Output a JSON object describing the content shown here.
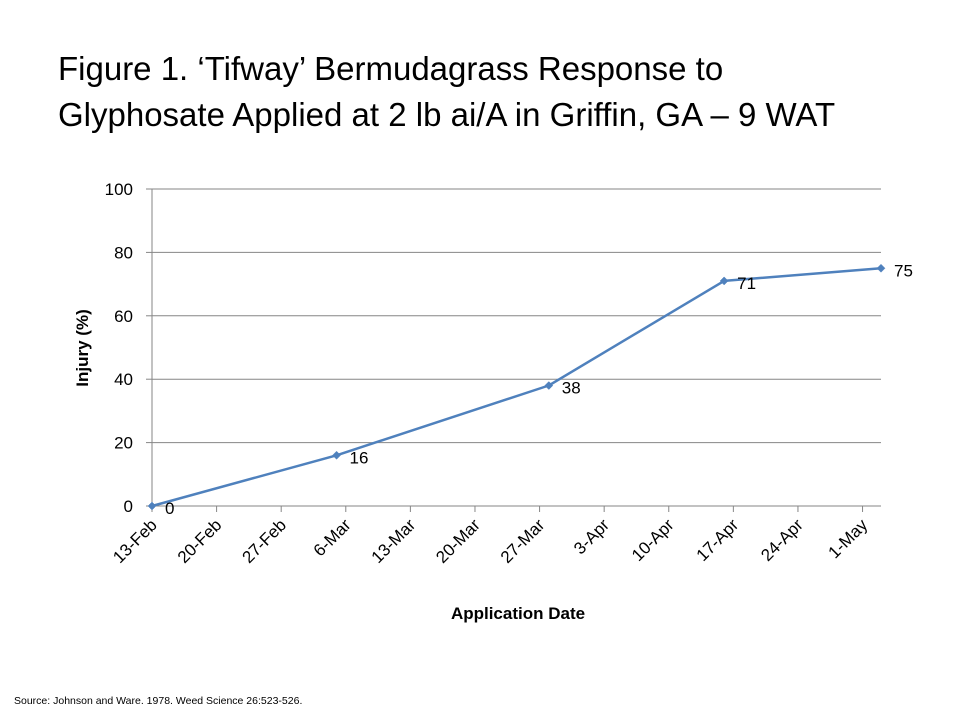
{
  "slide": {
    "title_line1": "Figure 1. ‘Tifway’ Bermudagrass Response to",
    "title_line2": "Glyphosate Applied at 2 lb ai/A in Griffin, GA – 9 WAT",
    "source": "Source:  Johnson and Ware.  1978.  Weed Science 26:523-526."
  },
  "chart_data": {
    "type": "line",
    "title": "",
    "xlabel": "Application Date",
    "ylabel": "Injury (%)",
    "ylim": [
      0,
      100
    ],
    "yticks": [
      0,
      20,
      40,
      60,
      80,
      100
    ],
    "xlim": [
      "13-Feb",
      "3-May"
    ],
    "xticks": [
      "13-Feb",
      "20-Feb",
      "27-Feb",
      "6-Mar",
      "13-Mar",
      "20-Mar",
      "27-Mar",
      "3-Apr",
      "10-Apr",
      "17-Apr",
      "24-Apr",
      "1-May"
    ],
    "grid": "horizontal",
    "legend": "none",
    "line_color": "#4f81bd",
    "series": [
      {
        "x": [
          "13-Feb",
          "5-Mar",
          "28-Mar",
          "16-Apr",
          "3-May"
        ],
        "values": [
          0,
          16,
          38,
          71,
          75
        ],
        "labels": [
          "0",
          "16",
          "38",
          "71",
          "75"
        ]
      }
    ]
  }
}
